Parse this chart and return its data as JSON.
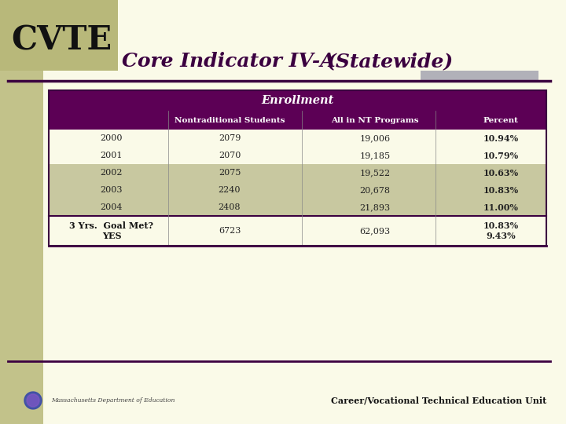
{
  "bg_color": "#FAFAE8",
  "cvte_bg_color": "#B8B87A",
  "cvte_text": "CVTE",
  "cvte_text_color": "#111111",
  "title_text": "Core Indicator IV-A",
  "title_text2": "(Statewide)",
  "title_color": "#3B0040",
  "title_fontsize": 18,
  "table_header_bg": "#5C0055",
  "table_header_text_color": "#FFFFFF",
  "table_alt_row_bg": "#C8C8A0",
  "table_white_row_bg": "#FAFAE8",
  "enrollment_label": "Enrollment",
  "col_headers": [
    "Nontraditional Students",
    "All in NT Programs",
    "Percent"
  ],
  "row_labels": [
    "2000",
    "2001",
    "2002",
    "2003",
    "2004"
  ],
  "nt_students": [
    "2079",
    "2070",
    "2075",
    "2240",
    "2408"
  ],
  "all_nt": [
    "19,006",
    "19,185",
    "19,522",
    "20,678",
    "21,893"
  ],
  "percent": [
    "10.94%",
    "10.79%",
    "10.63%",
    "10.83%",
    "11.00%"
  ],
  "footer_label": "3 Yrs.  Goal Met?\nYES",
  "footer_nt": "6723",
  "footer_all_nt": "62,093",
  "footer_percent": "10.83%\n9.43%",
  "footer_text": "Career/Vocational Technical Education Unit",
  "accent_line_color": "#3B0040",
  "gray_rect_color": "#9999AA",
  "alt_row_indices": [
    2,
    3,
    4
  ]
}
